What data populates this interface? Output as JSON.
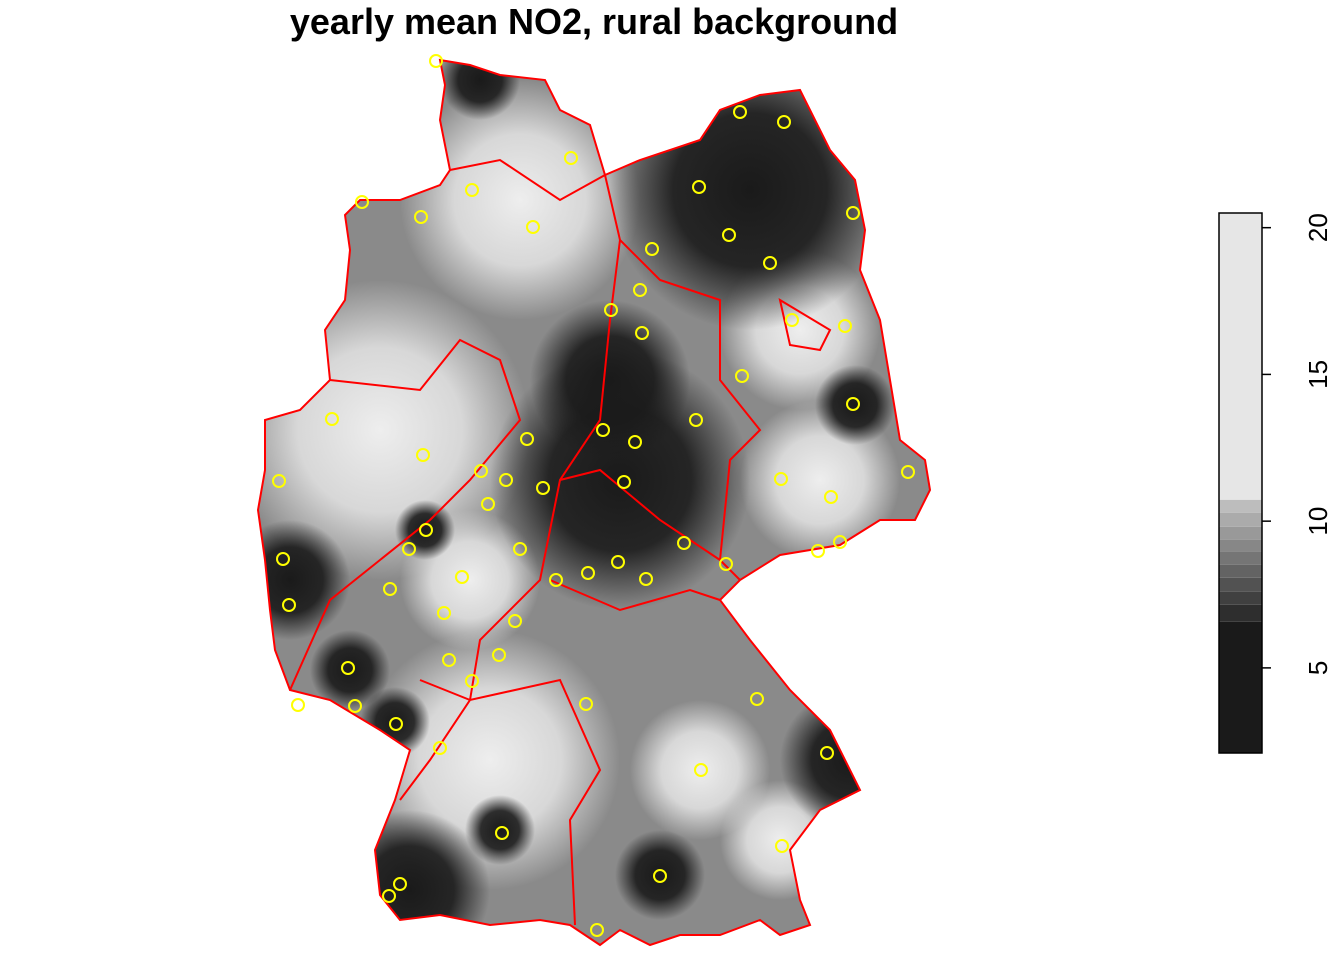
{
  "title": "yearly mean NO2, rural background",
  "legend": {
    "ylim": [
      2.1,
      20.5
    ],
    "yticks": [
      5,
      10,
      15,
      20
    ],
    "breaks": [
      2.1,
      6.57,
      7.15,
      7.59,
      8.07,
      8.51,
      8.95,
      9.36,
      9.81,
      10.28,
      10.73,
      20.5
    ],
    "colors": [
      "#1a1a1a",
      "#2e2e2e",
      "#404040",
      "#525252",
      "#636363",
      "#757575",
      "#878787",
      "#999999",
      "#ababab",
      "#bdbdbd",
      "#e6e6e6"
    ]
  }
}
